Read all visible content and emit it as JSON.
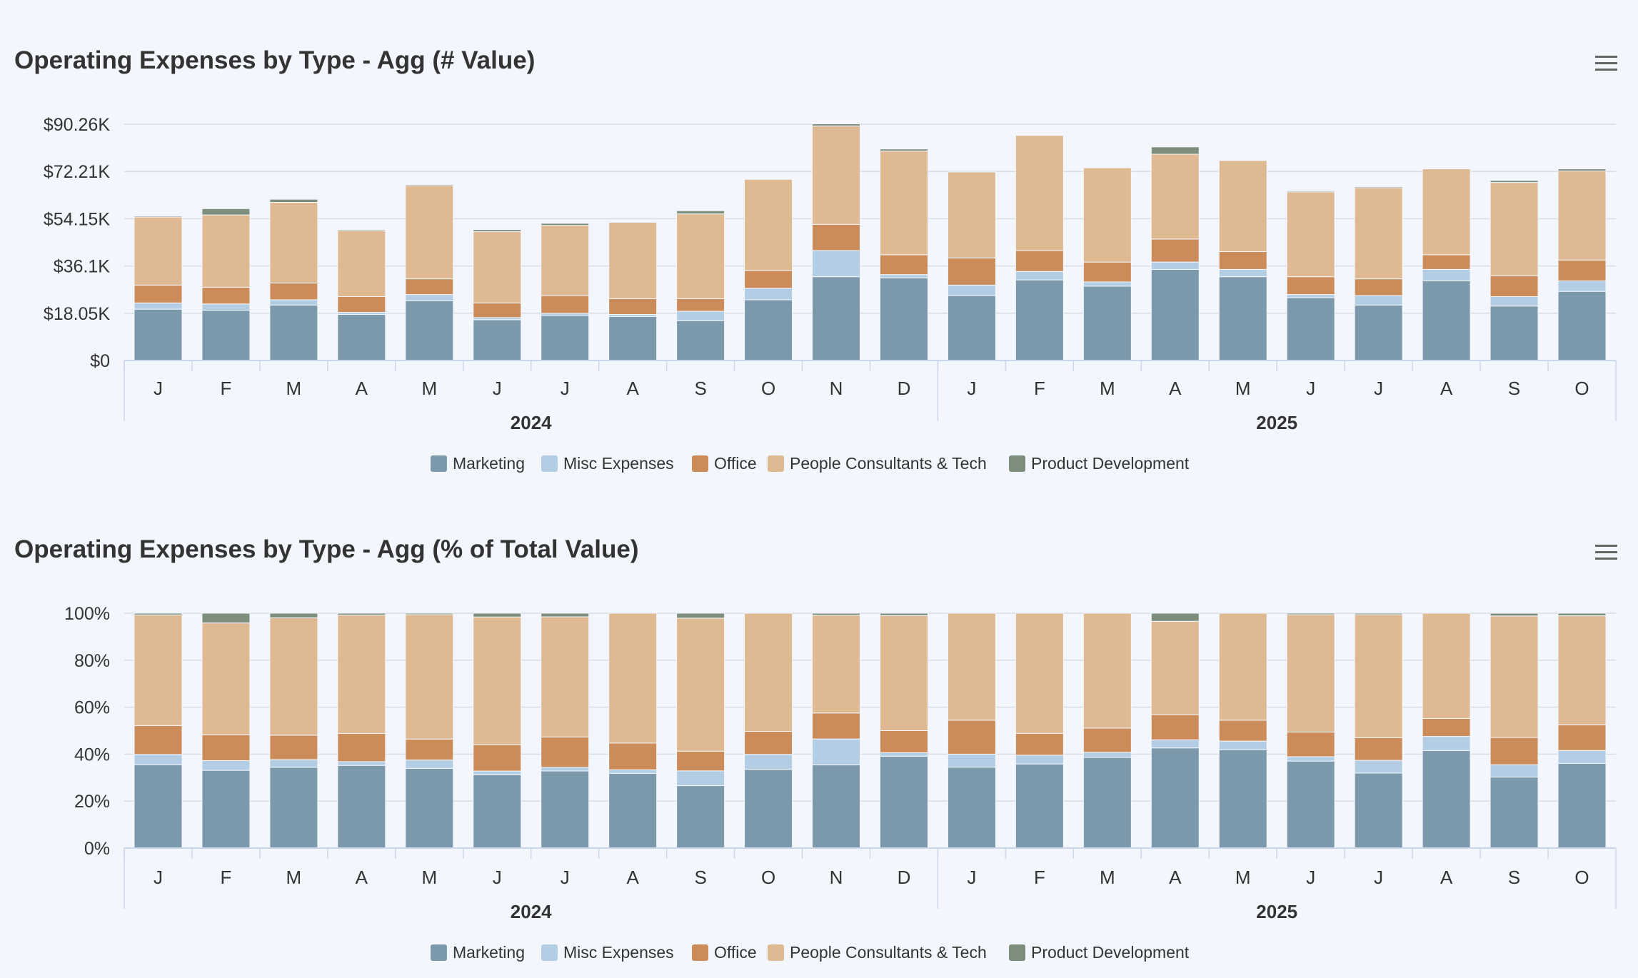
{
  "chart_data": [
    {
      "type": "bar",
      "stacking": "normal",
      "title": "Operating Expenses by Type - Agg (# Value)",
      "categories": [
        "J",
        "F",
        "M",
        "A",
        "M",
        "J",
        "J",
        "A",
        "S",
        "O",
        "N",
        "D",
        "J",
        "F",
        "M",
        "A",
        "M",
        "J",
        "J",
        "A",
        "S",
        "O"
      ],
      "groups": [
        {
          "label": "2024",
          "count": 12
        },
        {
          "label": "2025",
          "count": 10
        }
      ],
      "ylim": [
        0,
        90.26
      ],
      "yticks": [
        "$0",
        "$18.05K",
        "$36.1K",
        "$54.15K",
        "$72.21K",
        "$90.26K"
      ],
      "unit": "K$",
      "grid": true,
      "legend": "bottom",
      "series": [
        {
          "name": "Marketing",
          "color": "#7b99aa",
          "values": [
            19.6,
            19.2,
            21.2,
            17.6,
            22.8,
            15.6,
            17.2,
            16.8,
            15.2,
            23.2,
            32,
            31.6,
            24.8,
            30.8,
            28.4,
            34.8,
            32,
            24,
            21.2,
            30.4,
            20.8,
            26.4
          ]
        },
        {
          "name": "Misc Expenses",
          "color": "#b3cde5",
          "values": [
            2.4,
            2.4,
            2,
            0.8,
            2.4,
            0.8,
            0.8,
            0.8,
            3.6,
            4.4,
            10,
            1.2,
            4,
            3.2,
            1.6,
            2.8,
            2.8,
            1.2,
            3.6,
            4.4,
            3.6,
            4
          ]
        },
        {
          "name": "Office",
          "color": "#cc8c5a",
          "values": [
            6.8,
            6.4,
            6.4,
            6,
            6,
            5.6,
            6.8,
            6,
            4.8,
            6.8,
            10,
            7.6,
            10.4,
            8,
            7.6,
            8.8,
            6.8,
            6.8,
            6.4,
            5.6,
            8,
            8
          ]
        },
        {
          "name": "People Consultants & Tech",
          "color": "#dfb991",
          "values": [
            26,
            27.6,
            30.8,
            25.2,
            35.6,
            27.2,
            26.8,
            29.2,
            32.4,
            34.8,
            37.6,
            39.6,
            32.8,
            44,
            36,
            32.4,
            34.8,
            32.4,
            34.8,
            32.8,
            35.6,
            34
          ]
        },
        {
          "name": "Product Development",
          "color": "#7e8e7c",
          "values": [
            0.4,
            2.4,
            1.2,
            0.4,
            0.4,
            0.8,
            0.8,
            0,
            1.2,
            0,
            0.8,
            0.8,
            0,
            0,
            0,
            2.8,
            0,
            0.4,
            0.4,
            0,
            0.8,
            0.8
          ]
        }
      ]
    },
    {
      "type": "bar",
      "stacking": "percent",
      "title": "Operating Expenses by Type - Agg (% of Total Value)",
      "categories": [
        "J",
        "F",
        "M",
        "A",
        "M",
        "J",
        "J",
        "A",
        "S",
        "O",
        "N",
        "D",
        "J",
        "F",
        "M",
        "A",
        "M",
        "J",
        "J",
        "A",
        "S",
        "O"
      ],
      "groups": [
        {
          "label": "2024",
          "count": 12
        },
        {
          "label": "2025",
          "count": 10
        }
      ],
      "ylim": [
        0,
        100
      ],
      "yticks": [
        "0%",
        "20%",
        "40%",
        "60%",
        "80%",
        "100%"
      ],
      "grid": true,
      "legend": "bottom",
      "series": [
        {
          "name": "Marketing",
          "color": "#7b99aa",
          "values": [
            19.6,
            19.2,
            21.2,
            17.6,
            22.8,
            15.6,
            17.2,
            16.8,
            15.2,
            23.2,
            32,
            31.6,
            24.8,
            30.8,
            28.4,
            34.8,
            32,
            24,
            21.2,
            30.4,
            20.8,
            26.4
          ]
        },
        {
          "name": "Misc Expenses",
          "color": "#b3cde5",
          "values": [
            2.4,
            2.4,
            2,
            0.8,
            2.4,
            0.8,
            0.8,
            0.8,
            3.6,
            4.4,
            10,
            1.2,
            4,
            3.2,
            1.6,
            2.8,
            2.8,
            1.2,
            3.6,
            4.4,
            3.6,
            4
          ]
        },
        {
          "name": "Office",
          "color": "#cc8c5a",
          "values": [
            6.8,
            6.4,
            6.4,
            6,
            6,
            5.6,
            6.8,
            6,
            4.8,
            6.8,
            10,
            7.6,
            10.4,
            8,
            7.6,
            8.8,
            6.8,
            6.8,
            6.4,
            5.6,
            8,
            8
          ]
        },
        {
          "name": "People Consultants & Tech",
          "color": "#dfb991",
          "values": [
            26,
            27.6,
            30.8,
            25.2,
            35.6,
            27.2,
            26.8,
            29.2,
            32.4,
            34.8,
            37.6,
            39.6,
            32.8,
            44,
            36,
            32.4,
            34.8,
            32.4,
            34.8,
            32.8,
            35.6,
            34
          ]
        },
        {
          "name": "Product Development",
          "color": "#7e8e7c",
          "values": [
            0.4,
            2.4,
            1.2,
            0.4,
            0.4,
            0.8,
            0.8,
            0,
            1.2,
            0,
            0.8,
            0.8,
            0,
            0,
            0,
            2.8,
            0,
            0.4,
            0.4,
            0,
            0.8,
            0.8
          ]
        }
      ]
    }
  ],
  "menu_icon": "hamburger-menu-icon",
  "colors": {
    "background": "#f3f7fd",
    "grid": "#d8dce3",
    "axis": "#ccd6eb"
  }
}
